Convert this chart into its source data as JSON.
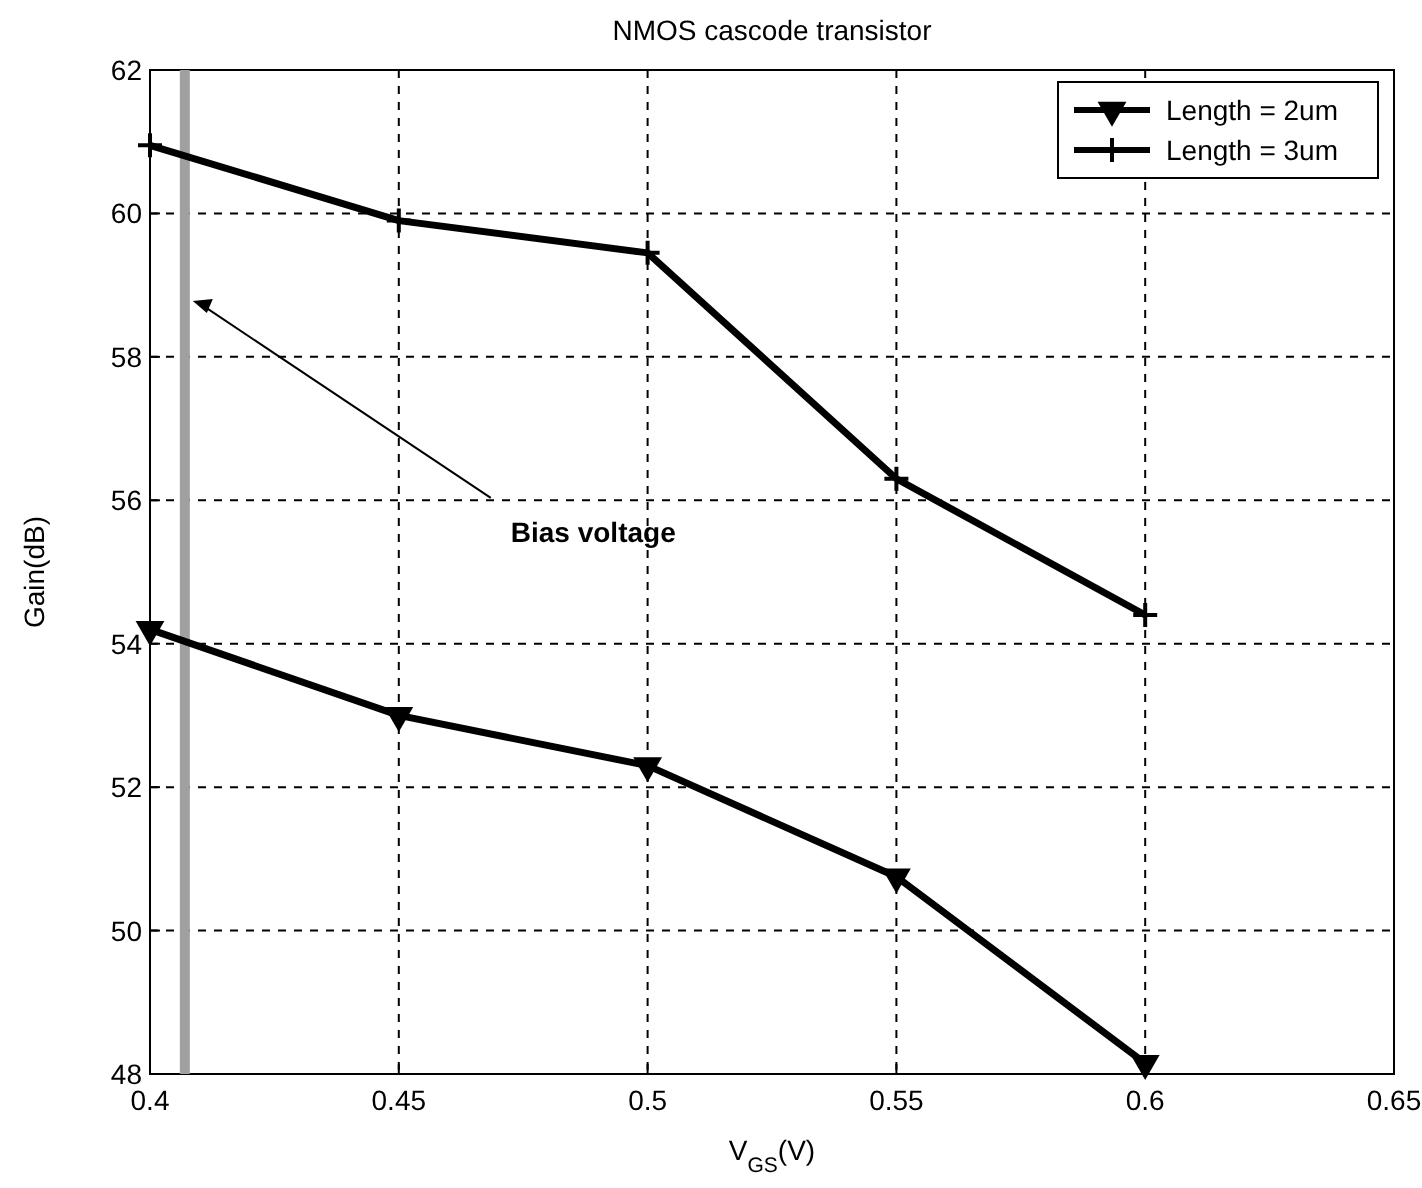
{
  "chart_data": {
    "type": "line",
    "title": "NMOS cascode transistor",
    "xlabel": "V$_{GS}$(V)",
    "ylabel": "Gain(dB)",
    "x": [
      0.4,
      0.45,
      0.5,
      0.55,
      0.6
    ],
    "series": [
      {
        "name": "Length = 2um",
        "color": "#000000",
        "marker": "triangle",
        "values": [
          54.2,
          53.0,
          52.3,
          50.75,
          48.15
        ]
      },
      {
        "name": "Length = 3um",
        "color": "#000000",
        "marker": "cross",
        "values": [
          60.95,
          59.9,
          59.45,
          56.3,
          54.4
        ]
      }
    ],
    "xlim": [
      0.4,
      0.65
    ],
    "xticks": [
      0.4,
      0.45,
      0.5,
      0.55,
      0.6,
      0.65
    ],
    "ylim": [
      48,
      62
    ],
    "yticks": [
      48,
      50,
      52,
      54,
      56,
      58,
      60,
      62
    ],
    "ref_lines": [
      {
        "axis": "x",
        "value": 0.407,
        "label": "Bias voltage",
        "color": "#a0a0a0"
      }
    ],
    "grid": true,
    "legend": "top right",
    "line_style": "solid"
  }
}
